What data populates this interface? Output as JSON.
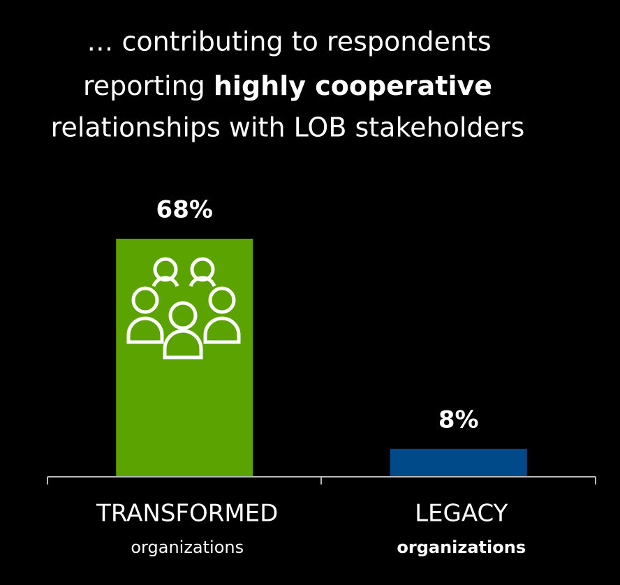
{
  "chart_data": {
    "type": "bar",
    "title": [
      "… contributing to respondents",
      [
        "reporting ",
        "highly cooperative"
      ],
      "relationships with LOB stakeholders"
    ],
    "categories": [
      "TRANSFORMED",
      "LEGACY"
    ],
    "category_sublabels": [
      "organizations",
      "organizations"
    ],
    "sublabel_bold": [
      false,
      true
    ],
    "values": [
      68,
      8
    ],
    "value_labels": [
      "68%",
      "8%"
    ],
    "colors": [
      "#5aa300",
      "#004a8a"
    ]
  }
}
